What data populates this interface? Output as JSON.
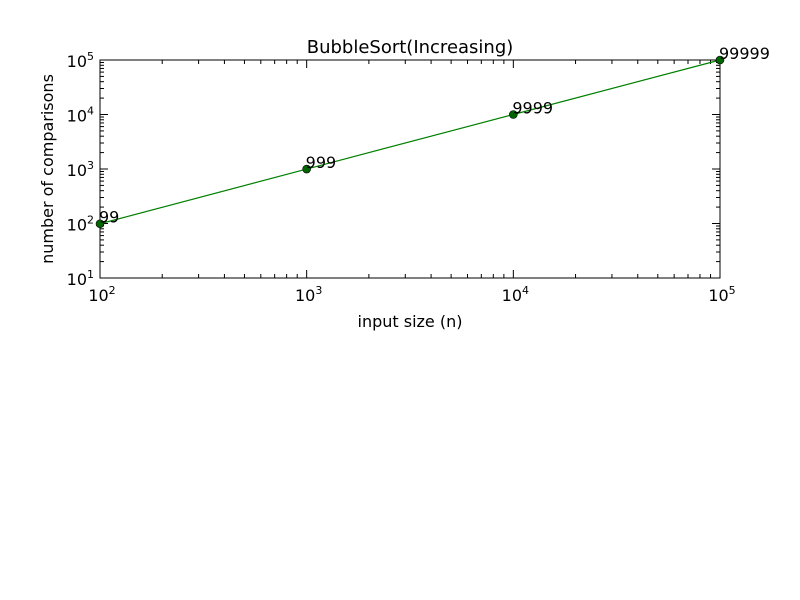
{
  "chart_data": {
    "type": "line",
    "title": "BubbleSort(Increasing)",
    "xlabel": "input size (n)",
    "ylabel": "number of comparisons",
    "x_scale": "log",
    "y_scale": "log",
    "xlim": [
      100,
      100000
    ],
    "ylim": [
      10,
      100000
    ],
    "grid": false,
    "x_ticks": [
      {
        "base": "10",
        "exp": "2"
      },
      {
        "base": "10",
        "exp": "3"
      },
      {
        "base": "10",
        "exp": "4"
      },
      {
        "base": "10",
        "exp": "5"
      }
    ],
    "y_ticks": [
      {
        "base": "10",
        "exp": "1"
      },
      {
        "base": "10",
        "exp": "2"
      },
      {
        "base": "10",
        "exp": "3"
      },
      {
        "base": "10",
        "exp": "4"
      },
      {
        "base": "10",
        "exp": "5"
      }
    ],
    "series": [
      {
        "x": [
          100,
          1000,
          10000,
          100000
        ],
        "y": [
          99,
          999,
          9999,
          99999
        ],
        "labels": [
          "99",
          "999",
          "9999",
          "99999"
        ],
        "color": "#008000",
        "marker_color": "#006400"
      }
    ]
  }
}
